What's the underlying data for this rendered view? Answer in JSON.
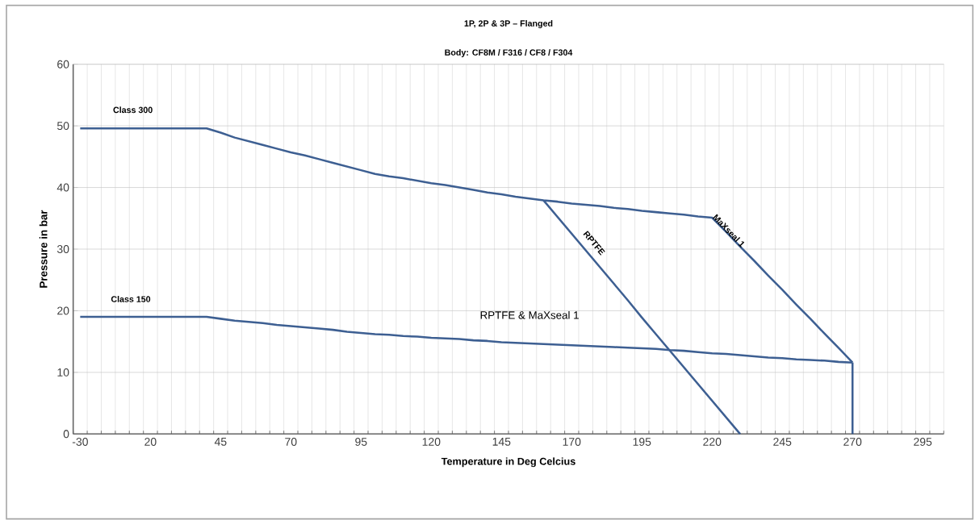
{
  "chart_data": {
    "type": "line",
    "title": "1P, 2P & 3P – Flanged",
    "subtitle": "Body: CF8M / F316 / CF8 / F304",
    "xlabel": "Temperature in Deg Celcius",
    "ylabel": "Pressure in bar",
    "categories": [
      "-30",
      null,
      null,
      null,
      null,
      "20",
      null,
      null,
      null,
      null,
      "45",
      null,
      null,
      null,
      null,
      "70",
      null,
      null,
      null,
      null,
      "95",
      null,
      null,
      null,
      null,
      "120",
      null,
      null,
      null,
      null,
      "145",
      null,
      null,
      null,
      null,
      "170",
      null,
      null,
      null,
      null,
      "195",
      null,
      null,
      null,
      null,
      "220",
      null,
      null,
      null,
      null,
      "245",
      null,
      null,
      null,
      null,
      "270",
      null,
      null,
      null,
      null,
      "295",
      null
    ],
    "series": [
      {
        "color": "#3d5f92",
        "values": [
          49.6,
          49.6,
          49.6,
          49.6,
          49.6,
          49.6,
          49.6,
          49.6,
          49.6,
          49.6,
          48.9,
          48.1,
          47.5,
          46.9,
          46.3,
          45.7,
          45.2,
          44.6,
          44.0,
          43.4,
          42.8,
          42.2,
          41.8,
          41.5,
          41.1,
          40.7,
          40.4,
          40.0,
          39.6,
          39.2,
          38.9,
          38.5,
          38.2,
          37.9,
          37.7,
          37.4,
          37.2,
          37.0,
          36.7,
          36.5,
          36.2,
          36.0,
          35.8,
          35.6,
          35.3,
          35.1,
          32.8,
          30.4,
          28.1,
          25.7,
          23.4,
          21.0,
          18.7,
          16.3,
          14.0,
          11.6,
          null,
          null,
          null,
          null,
          null,
          null
        ]
      },
      {
        "color": "#3d5f92",
        "values": [
          null,
          null,
          null,
          null,
          null,
          null,
          null,
          null,
          null,
          null,
          null,
          null,
          null,
          null,
          null,
          null,
          null,
          null,
          null,
          null,
          null,
          null,
          null,
          null,
          null,
          null,
          null,
          null,
          null,
          null,
          null,
          null,
          null,
          37.9,
          35.2,
          32.5,
          29.8,
          27.1,
          24.4,
          21.7,
          18.9,
          16.2,
          13.5,
          10.8,
          8.1,
          5.4,
          2.7,
          0,
          null,
          null,
          null,
          null,
          null,
          null,
          null,
          null,
          null,
          null,
          null,
          null,
          null,
          null
        ]
      },
      {
        "color": "#3d5f92",
        "values": [
          19.0,
          19.0,
          19.0,
          19.0,
          19.0,
          19.0,
          19.0,
          19.0,
          19.0,
          19.0,
          18.7,
          18.4,
          18.2,
          18.0,
          17.7,
          17.5,
          17.3,
          17.1,
          16.9,
          16.6,
          16.4,
          16.2,
          16.1,
          15.9,
          15.8,
          15.6,
          15.5,
          15.4,
          15.2,
          15.1,
          14.9,
          14.8,
          14.7,
          14.6,
          14.5,
          14.4,
          14.3,
          14.2,
          14.1,
          14.0,
          13.9,
          13.8,
          13.6,
          13.5,
          13.3,
          13.1,
          13.0,
          12.8,
          12.6,
          12.4,
          12.3,
          12.1,
          12.0,
          11.9,
          11.7,
          11.6,
          null,
          null,
          null,
          null,
          null,
          null
        ]
      },
      {
        "color": "#3d5f92",
        "x": [
          "270",
          "270"
        ],
        "values": [
          11.6,
          0
        ]
      }
    ],
    "ylim": [
      0,
      60
    ],
    "yticks": [
      0,
      10,
      20,
      30,
      40,
      50,
      60
    ],
    "grid": true,
    "marker": "none",
    "line_style": "solid",
    "annotations": [
      "Class 300",
      "Class 150",
      "RPTFE & MaXseal 1",
      "RPTFE",
      "MaXseal 1"
    ]
  }
}
